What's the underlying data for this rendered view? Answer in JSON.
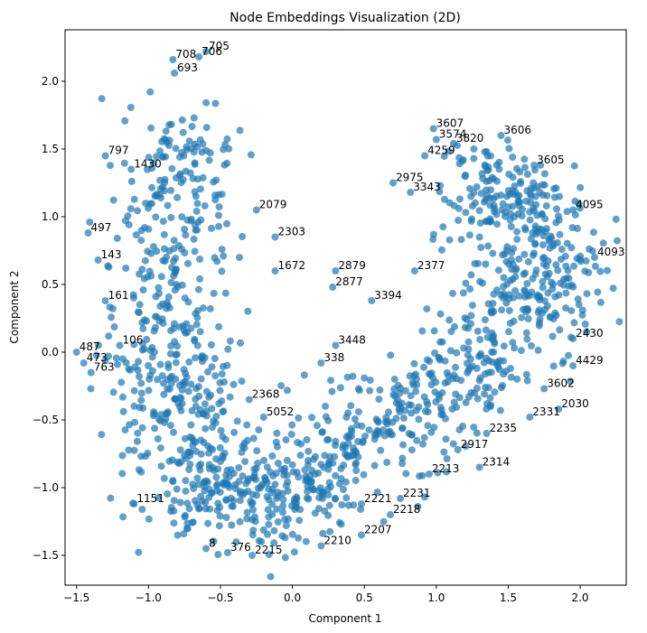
{
  "chart_data": {
    "type": "scatter",
    "title": "Node Embeddings Visualization (2D)",
    "xlabel": "Component 1",
    "ylabel": "Component 2",
    "xlim": [
      -1.58,
      2.32
    ],
    "ylim": [
      -1.72,
      2.38
    ],
    "xticks": [
      -1.5,
      -1.0,
      -0.5,
      0.0,
      0.5,
      1.0,
      1.5,
      2.0
    ],
    "yticks": [
      -1.5,
      -1.0,
      -0.5,
      0.0,
      0.5,
      1.0,
      1.5,
      2.0
    ],
    "grid": false,
    "marker_color": "#1f77b4",
    "marker_alpha": 0.7,
    "labeled_points": [
      {
        "label": "705",
        "x": -0.6,
        "y": 2.22
      },
      {
        "label": "706",
        "x": -0.65,
        "y": 2.18
      },
      {
        "label": "708",
        "x": -0.83,
        "y": 2.16
      },
      {
        "label": "693",
        "x": -0.82,
        "y": 2.06
      },
      {
        "label": "3607",
        "x": 0.98,
        "y": 1.65
      },
      {
        "label": "3606",
        "x": 1.45,
        "y": 1.6
      },
      {
        "label": "3574",
        "x": 1.0,
        "y": 1.57
      },
      {
        "label": "3820",
        "x": 1.12,
        "y": 1.54
      },
      {
        "label": "3605",
        "x": 1.68,
        "y": 1.38
      },
      {
        "label": "2975",
        "x": 0.7,
        "y": 1.25
      },
      {
        "label": "3343",
        "x": 0.82,
        "y": 1.18
      },
      {
        "label": "2879",
        "x": 0.3,
        "y": 0.6
      },
      {
        "label": "2877",
        "x": 0.28,
        "y": 0.48
      },
      {
        "label": "1672",
        "x": -0.12,
        "y": 0.6
      },
      {
        "label": "2377",
        "x": 0.85,
        "y": 0.6
      },
      {
        "label": "4095",
        "x": 1.95,
        "y": 1.05
      },
      {
        "label": "4093",
        "x": 2.1,
        "y": 0.7
      },
      {
        "label": "2430",
        "x": 1.95,
        "y": 0.1
      },
      {
        "label": "4429",
        "x": 1.95,
        "y": -0.1
      },
      {
        "label": "3602",
        "x": 1.75,
        "y": -0.27
      },
      {
        "label": "2331",
        "x": 1.65,
        "y": -0.48
      },
      {
        "label": "2235",
        "x": 1.35,
        "y": -0.6
      },
      {
        "label": "2314",
        "x": 1.3,
        "y": -0.85
      },
      {
        "label": "2231",
        "x": 0.75,
        "y": -1.08
      },
      {
        "label": "2218",
        "x": 0.68,
        "y": -1.2
      },
      {
        "label": "2207",
        "x": 0.48,
        "y": -1.35
      },
      {
        "label": "2210",
        "x": 0.2,
        "y": -1.43
      },
      {
        "label": "2215",
        "x": -0.28,
        "y": -1.5
      },
      {
        "label": "376",
        "x": -0.45,
        "y": -1.48
      },
      {
        "label": "8",
        "x": -0.6,
        "y": -1.45
      },
      {
        "label": "1151",
        "x": -1.1,
        "y": -1.12
      },
      {
        "label": "3448",
        "x": 0.3,
        "y": 0.05
      },
      {
        "label": "338",
        "x": 0.2,
        "y": -0.08
      },
      {
        "label": "3394",
        "x": 0.55,
        "y": 0.38
      },
      {
        "label": "4259",
        "x": 0.92,
        "y": 1.45
      },
      {
        "label": "1430",
        "x": -1.12,
        "y": 1.35
      },
      {
        "label": "797",
        "x": -1.3,
        "y": 1.45
      },
      {
        "label": "497",
        "x": -1.42,
        "y": 0.88
      },
      {
        "label": "143",
        "x": -1.35,
        "y": 0.68
      },
      {
        "label": "161",
        "x": -1.3,
        "y": 0.38
      },
      {
        "label": "106",
        "x": -1.2,
        "y": 0.05
      },
      {
        "label": "487",
        "x": -1.5,
        "y": 0.0
      },
      {
        "label": "473",
        "x": -1.45,
        "y": -0.08
      },
      {
        "label": "763",
        "x": -1.4,
        "y": -0.15
      },
      {
        "label": "5052",
        "x": -0.2,
        "y": -0.48
      },
      {
        "label": "2368",
        "x": -0.3,
        "y": -0.35
      },
      {
        "label": "2079",
        "x": -0.25,
        "y": 1.05
      },
      {
        "label": "2303",
        "x": -0.12,
        "y": 0.85
      },
      {
        "label": "2917",
        "x": 1.15,
        "y": -0.72
      },
      {
        "label": "2213",
        "x": 0.95,
        "y": -0.9
      },
      {
        "label": "2221",
        "x": 0.48,
        "y": -1.12
      },
      {
        "label": "2030",
        "x": 1.85,
        "y": -0.42
      }
    ]
  }
}
